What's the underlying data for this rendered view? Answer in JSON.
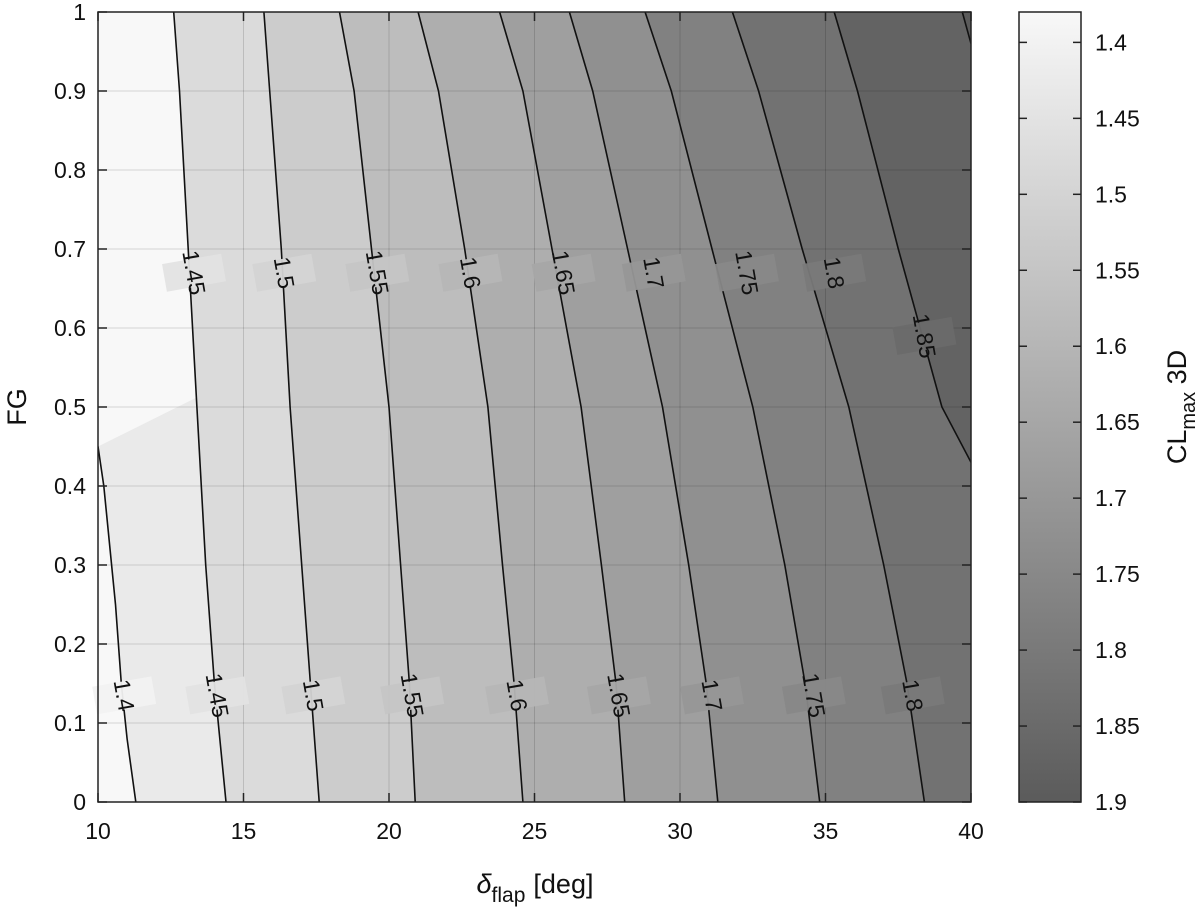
{
  "chart_data": {
    "type": "contour",
    "xlabel": {
      "symbol": "δ",
      "subscript": "flap",
      "unit": "[deg]"
    },
    "ylabel": "FG",
    "xlim": [
      10,
      40
    ],
    "ylim": [
      0,
      1
    ],
    "xticks": [
      "10",
      "15",
      "20",
      "25",
      "30",
      "35",
      "40"
    ],
    "yticks": [
      "0",
      "0.1",
      "0.2",
      "0.3",
      "0.4",
      "0.5",
      "0.6",
      "0.7",
      "0.8",
      "0.9",
      "1"
    ],
    "grid": true,
    "colormap": "gray (light = low, dark = high)",
    "colorbar": {
      "label": {
        "main": "CL",
        "subscript": "max",
        "suffix": " 3D"
      },
      "range": [
        1.38,
        1.9
      ],
      "ticks": [
        "1.4",
        "1.45",
        "1.5",
        "1.55",
        "1.6",
        "1.65",
        "1.7",
        "1.75",
        "1.8",
        "1.85",
        "1.9"
      ]
    },
    "contours": [
      {
        "level": "1.4",
        "points": [
          [
            10,
            0.45
          ],
          [
            10.2,
            0.4
          ],
          [
            10.6,
            0.25
          ],
          [
            10.8,
            0.15
          ],
          [
            11.0,
            0.08
          ],
          [
            11.3,
            0.0
          ]
        ]
      },
      {
        "level": "1.45",
        "points": [
          [
            12.6,
            1.0
          ],
          [
            12.8,
            0.9
          ],
          [
            13.1,
            0.7
          ],
          [
            13.4,
            0.5
          ],
          [
            13.7,
            0.3
          ],
          [
            14.0,
            0.15
          ],
          [
            14.4,
            0.0
          ]
        ]
      },
      {
        "level": "1.5",
        "points": [
          [
            15.7,
            1.0
          ],
          [
            15.9,
            0.9
          ],
          [
            16.3,
            0.7
          ],
          [
            16.6,
            0.5
          ],
          [
            17.0,
            0.3
          ],
          [
            17.3,
            0.15
          ],
          [
            17.6,
            0.0
          ]
        ]
      },
      {
        "level": "1.55",
        "points": [
          [
            18.3,
            1.0
          ],
          [
            18.8,
            0.9
          ],
          [
            19.4,
            0.7
          ],
          [
            20.0,
            0.5
          ],
          [
            20.4,
            0.3
          ],
          [
            20.7,
            0.15
          ],
          [
            20.9,
            0.0
          ]
        ]
      },
      {
        "level": "1.6",
        "points": [
          [
            21.0,
            1.0
          ],
          [
            21.7,
            0.9
          ],
          [
            22.6,
            0.7
          ],
          [
            23.4,
            0.5
          ],
          [
            23.9,
            0.3
          ],
          [
            24.3,
            0.15
          ],
          [
            24.6,
            0.0
          ]
        ]
      },
      {
        "level": "1.65",
        "points": [
          [
            23.8,
            1.0
          ],
          [
            24.6,
            0.9
          ],
          [
            25.6,
            0.7
          ],
          [
            26.6,
            0.5
          ],
          [
            27.3,
            0.3
          ],
          [
            27.8,
            0.15
          ],
          [
            28.1,
            0.0
          ]
        ]
      },
      {
        "level": "1.7",
        "points": [
          [
            26.2,
            1.0
          ],
          [
            27.0,
            0.9
          ],
          [
            28.2,
            0.7
          ],
          [
            29.4,
            0.5
          ],
          [
            30.3,
            0.3
          ],
          [
            30.9,
            0.15
          ],
          [
            31.3,
            0.0
          ]
        ]
      },
      {
        "level": "1.75",
        "points": [
          [
            28.8,
            1.0
          ],
          [
            29.7,
            0.9
          ],
          [
            31.1,
            0.7
          ],
          [
            32.5,
            0.5
          ],
          [
            33.6,
            0.3
          ],
          [
            34.3,
            0.15
          ],
          [
            34.8,
            0.0
          ]
        ]
      },
      {
        "level": "1.8",
        "points": [
          [
            31.8,
            1.0
          ],
          [
            32.7,
            0.9
          ],
          [
            34.2,
            0.7
          ],
          [
            35.8,
            0.5
          ],
          [
            37.0,
            0.3
          ],
          [
            37.8,
            0.15
          ],
          [
            38.4,
            0.0
          ]
        ]
      },
      {
        "level": "1.85",
        "points": [
          [
            35.3,
            1.0
          ],
          [
            36.1,
            0.9
          ],
          [
            37.5,
            0.7
          ],
          [
            39.0,
            0.5
          ],
          [
            40.0,
            0.43
          ]
        ]
      },
      {
        "level": "1.9",
        "points": [
          [
            39.7,
            1.0
          ],
          [
            40.0,
            0.96
          ]
        ]
      }
    ],
    "contour_labels": [
      {
        "text": "1.45",
        "x": 13.3,
        "y": 0.67
      },
      {
        "text": "1.5",
        "x": 16.4,
        "y": 0.67
      },
      {
        "text": "1.55",
        "x": 19.6,
        "y": 0.67
      },
      {
        "text": "1.6",
        "x": 22.8,
        "y": 0.67
      },
      {
        "text": "1.65",
        "x": 26.0,
        "y": 0.67
      },
      {
        "text": "1.7",
        "x": 29.1,
        "y": 0.67
      },
      {
        "text": "1.75",
        "x": 32.3,
        "y": 0.67
      },
      {
        "text": "1.8",
        "x": 35.3,
        "y": 0.67
      },
      {
        "text": "1.85",
        "x": 38.4,
        "y": 0.59
      },
      {
        "text": "1.4",
        "x": 10.9,
        "y": 0.135
      },
      {
        "text": "1.45",
        "x": 14.1,
        "y": 0.135
      },
      {
        "text": "1.5",
        "x": 17.4,
        "y": 0.135
      },
      {
        "text": "1.55",
        "x": 20.8,
        "y": 0.135
      },
      {
        "text": "1.6",
        "x": 24.4,
        "y": 0.135
      },
      {
        "text": "1.65",
        "x": 27.9,
        "y": 0.135
      },
      {
        "text": "1.7",
        "x": 31.1,
        "y": 0.135
      },
      {
        "text": "1.75",
        "x": 34.6,
        "y": 0.135
      },
      {
        "text": "1.8",
        "x": 38.0,
        "y": 0.135
      }
    ]
  }
}
